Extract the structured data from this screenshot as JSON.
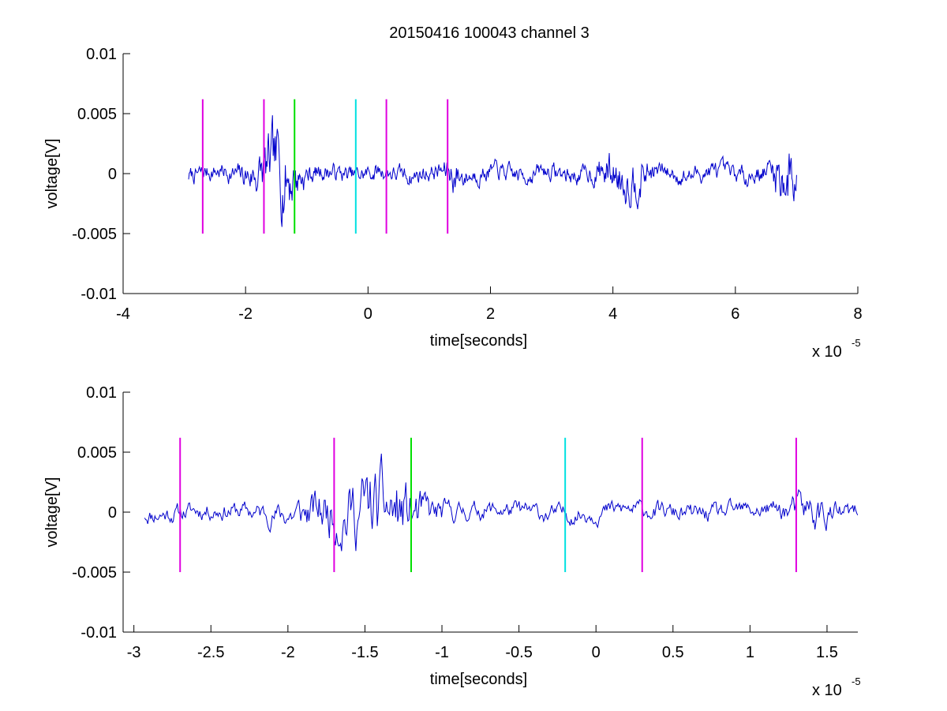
{
  "figure": {
    "title": "20150416 100043 channel 3"
  },
  "chart_data": [
    {
      "type": "line",
      "xlabel": "time[seconds]",
      "ylabel": "voltage[V]",
      "x_exponent_label": "x 10",
      "x_exponent": "-5",
      "xlim": [
        -4,
        8
      ],
      "ylim": [
        -0.01,
        0.01
      ],
      "x_ticks": [
        -4,
        -2,
        0,
        2,
        4,
        6,
        8
      ],
      "x_tick_labels": [
        "-4",
        "-2",
        "0",
        "2",
        "4",
        "6",
        "8"
      ],
      "y_ticks": [
        -0.01,
        -0.005,
        0,
        0.005,
        0.01
      ],
      "y_tick_labels": [
        "-0.01",
        "-0.005",
        "0",
        "0.005",
        "0.01"
      ],
      "grid": false,
      "signal": {
        "color": "#0000cc",
        "x_start": -2.93,
        "x_end": 7.0,
        "num_points": 900,
        "seed": 7
      },
      "markers": [
        {
          "x": -2.7,
          "color": "#e000e0",
          "y0": -0.005,
          "y1": 0.0062
        },
        {
          "x": -1.7,
          "color": "#e000e0",
          "y0": -0.005,
          "y1": 0.0062
        },
        {
          "x": -1.2,
          "color": "#00e000",
          "y0": -0.005,
          "y1": 0.0062
        },
        {
          "x": -0.2,
          "color": "#00e0e0",
          "y0": -0.005,
          "y1": 0.0062
        },
        {
          "x": 0.3,
          "color": "#e000e0",
          "y0": -0.005,
          "y1": 0.0062
        },
        {
          "x": 1.3,
          "color": "#e000e0",
          "y0": -0.005,
          "y1": 0.0062
        }
      ]
    },
    {
      "type": "line",
      "xlabel": "time[seconds]",
      "ylabel": "voltage[V]",
      "x_exponent_label": "x 10",
      "x_exponent": "-5",
      "xlim": [
        -3.07,
        1.7
      ],
      "ylim": [
        -0.01,
        0.01
      ],
      "x_ticks": [
        -3,
        -2.5,
        -2,
        -1.5,
        -1,
        -0.5,
        0,
        0.5,
        1,
        1.5
      ],
      "x_tick_labels": [
        "-3",
        "-2.5",
        "-2",
        "-1.5",
        "-1",
        "-0.5",
        "0",
        "0.5",
        "1",
        "1.5"
      ],
      "y_ticks": [
        -0.01,
        -0.005,
        0,
        0.005,
        0.01
      ],
      "y_tick_labels": [
        "-0.01",
        "-0.005",
        "0",
        "0.005",
        "0.01"
      ],
      "grid": false,
      "signal": {
        "color": "#0000cc",
        "x_start": -2.93,
        "x_end": 1.7,
        "num_points": 700,
        "seed": 11
      },
      "markers": [
        {
          "x": -2.7,
          "color": "#e000e0",
          "y0": -0.005,
          "y1": 0.0062
        },
        {
          "x": -1.7,
          "color": "#e000e0",
          "y0": -0.005,
          "y1": 0.0062
        },
        {
          "x": -1.2,
          "color": "#00e000",
          "y0": -0.005,
          "y1": 0.0062
        },
        {
          "x": -0.2,
          "color": "#00e0e0",
          "y0": -0.005,
          "y1": 0.0062
        },
        {
          "x": 0.3,
          "color": "#e000e0",
          "y0": -0.005,
          "y1": 0.0062
        },
        {
          "x": 1.3,
          "color": "#e000e0",
          "y0": -0.005,
          "y1": 0.0062
        }
      ]
    }
  ]
}
